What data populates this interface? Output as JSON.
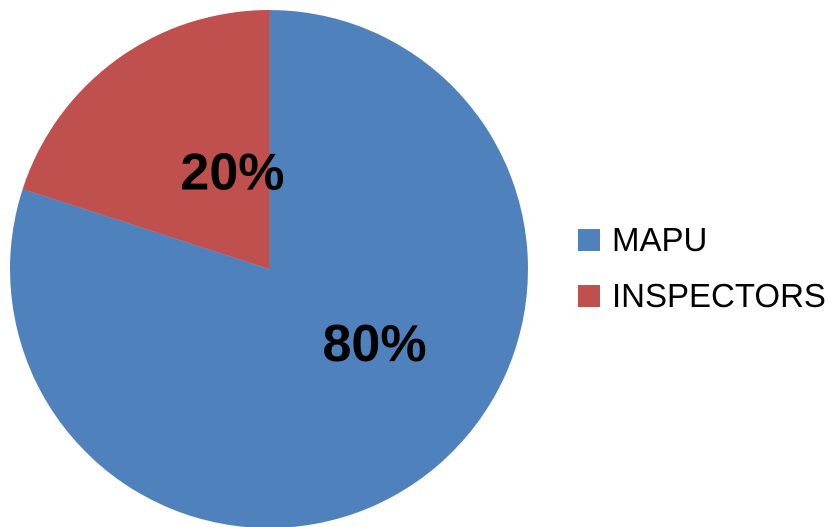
{
  "chart_data": {
    "type": "pie",
    "title": "",
    "slices": [
      {
        "label": "MAPU",
        "value": 80,
        "value_label": "80%",
        "color": "#4F81BD"
      },
      {
        "label": "INSPECTORS",
        "value": 20,
        "value_label": "20%",
        "color": "#C0504D"
      }
    ],
    "legend_position": "right"
  }
}
